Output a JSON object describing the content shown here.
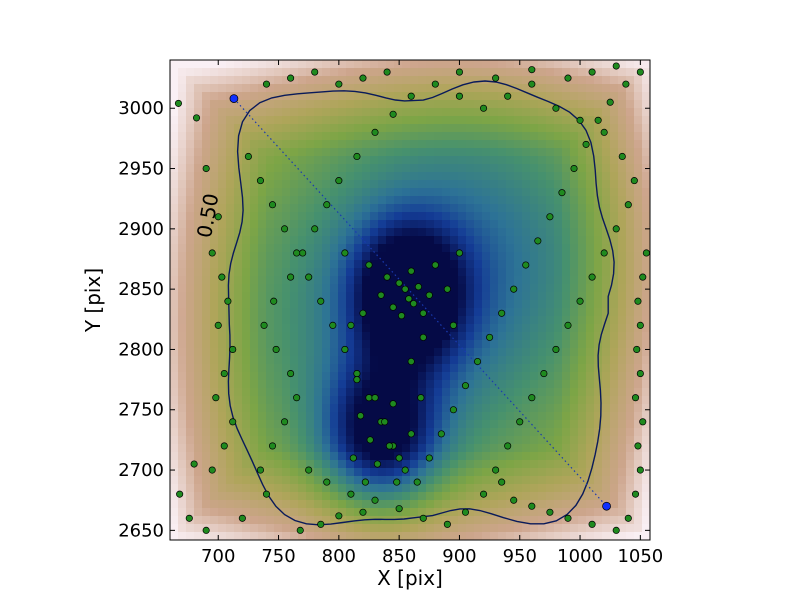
{
  "chart_data": {
    "type": "scatter",
    "title": "",
    "xlabel": "X [pix]",
    "ylabel": "Y [pix]",
    "xlim": [
      660,
      1058
    ],
    "ylim": [
      2642,
      3040
    ],
    "xticks": [
      700,
      750,
      800,
      850,
      900,
      950,
      1000,
      1050
    ],
    "yticks": [
      2650,
      2700,
      2750,
      2800,
      2850,
      2900,
      2950,
      3000
    ],
    "background": "density colormap (gist_earth): dark blue at high density, green/tan/pink at low density",
    "contour": {
      "level_label": "0.50",
      "color": "#0a1a5a"
    },
    "blue_points": [
      [
        713,
        3008
      ],
      [
        1022,
        2670
      ]
    ],
    "dotted_line": [
      [
        713,
        3008
      ],
      [
        1022,
        2670
      ]
    ],
    "density_peaks": [
      [
        858,
        2845
      ],
      [
        835,
        2730
      ]
    ],
    "points_color": "#1f8a1f",
    "points": [
      [
        667,
        3004
      ],
      [
        682,
        2992
      ],
      [
        690,
        2950
      ],
      [
        700,
        2910
      ],
      [
        695,
        2880
      ],
      [
        703,
        2860
      ],
      [
        708,
        2840
      ],
      [
        700,
        2820
      ],
      [
        712,
        2800
      ],
      [
        705,
        2780
      ],
      [
        698,
        2760
      ],
      [
        712,
        2740
      ],
      [
        705,
        2720
      ],
      [
        695,
        2700
      ],
      [
        680,
        2705
      ],
      [
        668,
        2680
      ],
      [
        676,
        2660
      ],
      [
        690,
        2650
      ],
      [
        720,
        2660
      ],
      [
        740,
        2680
      ],
      [
        735,
        2700
      ],
      [
        745,
        2720
      ],
      [
        755,
        2740
      ],
      [
        765,
        2760
      ],
      [
        760,
        2780
      ],
      [
        748,
        2800
      ],
      [
        738,
        2820
      ],
      [
        746,
        2840
      ],
      [
        760,
        2860
      ],
      [
        770,
        2880
      ],
      [
        780,
        2900
      ],
      [
        790,
        2920
      ],
      [
        800,
        2940
      ],
      [
        815,
        2960
      ],
      [
        830,
        2980
      ],
      [
        845,
        2995
      ],
      [
        860,
        3010
      ],
      [
        880,
        3020
      ],
      [
        900,
        3010
      ],
      [
        920,
        3000
      ],
      [
        940,
        3010
      ],
      [
        960,
        3020
      ],
      [
        980,
        3000
      ],
      [
        1000,
        2990
      ],
      [
        1020,
        2980
      ],
      [
        1035,
        2960
      ],
      [
        1045,
        2940
      ],
      [
        1040,
        2920
      ],
      [
        1030,
        2900
      ],
      [
        1020,
        2880
      ],
      [
        1010,
        2860
      ],
      [
        1000,
        2840
      ],
      [
        990,
        2820
      ],
      [
        980,
        2800
      ],
      [
        970,
        2780
      ],
      [
        960,
        2760
      ],
      [
        950,
        2740
      ],
      [
        940,
        2720
      ],
      [
        930,
        2700
      ],
      [
        920,
        2680
      ],
      [
        905,
        2665
      ],
      [
        890,
        2655
      ],
      [
        870,
        2660
      ],
      [
        850,
        2668
      ],
      [
        830,
        2675
      ],
      [
        810,
        2680
      ],
      [
        790,
        2690
      ],
      [
        775,
        2700
      ],
      [
        768,
        2650
      ],
      [
        785,
        2655
      ],
      [
        800,
        2662
      ],
      [
        820,
        2665
      ],
      [
        725,
        2960
      ],
      [
        735,
        2940
      ],
      [
        745,
        2920
      ],
      [
        755,
        2900
      ],
      [
        765,
        2880
      ],
      [
        775,
        2860
      ],
      [
        785,
        2840
      ],
      [
        795,
        2820
      ],
      [
        805,
        2800
      ],
      [
        815,
        2780
      ],
      [
        825,
        2760
      ],
      [
        835,
        2740
      ],
      [
        845,
        2720
      ],
      [
        855,
        2700
      ],
      [
        865,
        2690
      ],
      [
        875,
        2710
      ],
      [
        885,
        2730
      ],
      [
        895,
        2750
      ],
      [
        905,
        2770
      ],
      [
        915,
        2790
      ],
      [
        925,
        2810
      ],
      [
        935,
        2830
      ],
      [
        945,
        2850
      ],
      [
        955,
        2870
      ],
      [
        965,
        2890
      ],
      [
        975,
        2910
      ],
      [
        985,
        2930
      ],
      [
        995,
        2950
      ],
      [
        1005,
        2970
      ],
      [
        1015,
        2990
      ],
      [
        1025,
        3005
      ],
      [
        1038,
        3020
      ],
      [
        1050,
        3030
      ],
      [
        1055,
        2880
      ],
      [
        1052,
        2860
      ],
      [
        1048,
        2840
      ],
      [
        1050,
        2820
      ],
      [
        1047,
        2800
      ],
      [
        1050,
        2780
      ],
      [
        1046,
        2760
      ],
      [
        1052,
        2740
      ],
      [
        1048,
        2720
      ],
      [
        1050,
        2700
      ],
      [
        1046,
        2680
      ],
      [
        1040,
        2660
      ],
      [
        1030,
        2650
      ],
      [
        1010,
        2655
      ],
      [
        990,
        2660
      ],
      [
        975,
        2665
      ],
      [
        960,
        2670
      ],
      [
        945,
        2675
      ],
      [
        935,
        2690
      ],
      [
        855,
        2850
      ],
      [
        858,
        2842
      ],
      [
        862,
        2838
      ],
      [
        850,
        2855
      ],
      [
        845,
        2835
      ],
      [
        866,
        2852
      ],
      [
        870,
        2830
      ],
      [
        840,
        2860
      ],
      [
        852,
        2828
      ],
      [
        860,
        2865
      ],
      [
        875,
        2845
      ],
      [
        835,
        2845
      ],
      [
        880,
        2870
      ],
      [
        825,
        2870
      ],
      [
        890,
        2850
      ],
      [
        820,
        2830
      ],
      [
        895,
        2820
      ],
      [
        810,
        2820
      ],
      [
        900,
        2880
      ],
      [
        805,
        2880
      ],
      [
        830,
        2760
      ],
      [
        838,
        2740
      ],
      [
        842,
        2720
      ],
      [
        826,
        2725
      ],
      [
        818,
        2745
      ],
      [
        845,
        2755
      ],
      [
        832,
        2705
      ],
      [
        850,
        2710
      ],
      [
        812,
        2710
      ],
      [
        822,
        2690
      ],
      [
        848,
        2690
      ],
      [
        860,
        2730
      ],
      [
        868,
        2760
      ],
      [
        815,
        2775
      ],
      [
        860,
        2790
      ],
      [
        870,
        2810
      ],
      [
        740,
        3020
      ],
      [
        760,
        3025
      ],
      [
        780,
        3030
      ],
      [
        800,
        3020
      ],
      [
        820,
        3025
      ],
      [
        840,
        3030
      ],
      [
        900,
        3030
      ],
      [
        930,
        3025
      ],
      [
        960,
        3032
      ],
      [
        990,
        3025
      ],
      [
        1010,
        3030
      ],
      [
        1030,
        3035
      ]
    ]
  }
}
